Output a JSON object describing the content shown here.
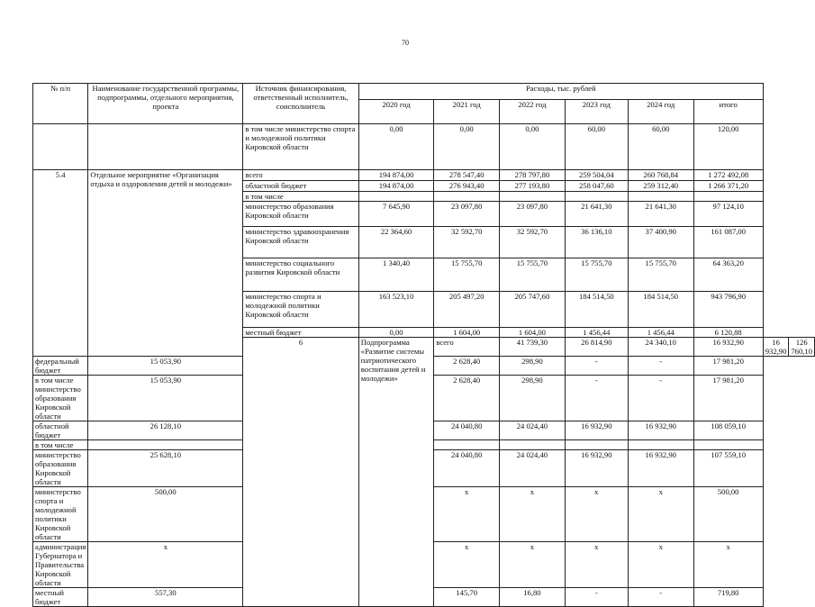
{
  "page_number": "70",
  "header": {
    "no": "№ п/п",
    "name": "Наименование государственной программы, подпрограммы, отдельного мероприятия, проекта",
    "source": "Источник финансирования, ответственный исполнитель, соисполнитель",
    "expenses": "Расходы, тыс. рублей",
    "years": [
      "2020 год",
      "2021 год",
      "2022 год",
      "2023 год",
      "2024 год",
      "итого"
    ]
  },
  "rows": [
    {
      "no": "",
      "name": "",
      "source": "в том числе министерство спорта и молодежной политики Кировской области",
      "values": [
        "0,00",
        "0,00",
        "0,00",
        "60,00",
        "60,00",
        "120,00"
      ]
    },
    {
      "no": "5.4",
      "name": "Отдельное мероприятие «Организация отдыха и оздоровления детей и молодежи»",
      "span": 9,
      "source": "всего",
      "values": [
        "194 874,00",
        "278 547,40",
        "278 797,80",
        "259 504,04",
        "260 768,84",
        "1 272 492,08"
      ]
    },
    {
      "source": "областной бюджет",
      "values": [
        "194 874,00",
        "276 943,40",
        "277 193,80",
        "258 047,60",
        "259 312,40",
        "1 266 371,20"
      ]
    },
    {
      "source": "в том числе",
      "values": [
        "",
        "",
        "",
        "",
        "",
        ""
      ]
    },
    {
      "source": "министерство образования Кировской области",
      "values": [
        "7 645,90",
        "23 097,80",
        "23 097,80",
        "21 641,30",
        "21 641,30",
        "97 124,10"
      ]
    },
    {
      "source": "министерство здравоохранения Кировской области",
      "values": [
        "22 364,60",
        "32 592,70",
        "32 592,70",
        "36 136,10",
        "37 400,90",
        "161 087,00"
      ]
    },
    {
      "source": "министерство социального развития Кировской области",
      "values": [
        "1 340,40",
        "15 755,70",
        "15 755,70",
        "15 755,70",
        "15 755,70",
        "64 363,20"
      ]
    },
    {
      "source": "министерство спорта и молодежной политики Кировской области",
      "values": [
        "163 523,10",
        "205 497,20",
        "205 747,60",
        "184 514,50",
        "184 514,50",
        "943 796,90"
      ]
    },
    {
      "source": "местный бюджет",
      "values": [
        "0,00",
        "1 604,00",
        "1 604,00",
        "1 456,44",
        "1 456,44",
        "6 120,88"
      ]
    },
    {
      "no": "6",
      "name": "Подпрограмма «Развитие системы патриотического воспитания детей и молодежи»",
      "span": 9,
      "source": "всего",
      "values": [
        "41 739,30",
        "26 814,90",
        "24 340,10",
        "16 932,90",
        "16 932,90",
        "126 760,10"
      ]
    },
    {
      "source": "федеральный бюджет",
      "values": [
        "15 053,90",
        "2 628,40",
        "298,90",
        "-",
        "-",
        "17 981,20"
      ]
    },
    {
      "source": "в том числе министерство образования Кировской области",
      "values": [
        "15 053,90",
        "2 628,40",
        "298,90",
        "-",
        "-",
        "17 981,20"
      ]
    },
    {
      "source": "областной бюджет",
      "values": [
        "26 128,10",
        "24 040,80",
        "24 024,40",
        "16 932,90",
        "16 932,90",
        "108 059,10"
      ]
    },
    {
      "source": "в том числе",
      "values": [
        "",
        "",
        "",
        "",
        "",
        ""
      ]
    },
    {
      "source": "министерство образования Кировской области",
      "values": [
        "25 628,10",
        "24 040,80",
        "24 024,40",
        "16 932,90",
        "16 932,90",
        "107 559,10"
      ]
    },
    {
      "source": "министерство спорта и молодежной политики Кировской области",
      "values": [
        "500,00",
        "x",
        "x",
        "x",
        "x",
        "500,00"
      ]
    },
    {
      "source": "администрация Губернатора и Правительства Кировской области",
      "values": [
        "x",
        "x",
        "x",
        "x",
        "x",
        "x"
      ]
    },
    {
      "source": "местный бюджет",
      "values": [
        "557,30",
        "145,70",
        "16,80",
        "-",
        "-",
        "719,80"
      ]
    }
  ]
}
